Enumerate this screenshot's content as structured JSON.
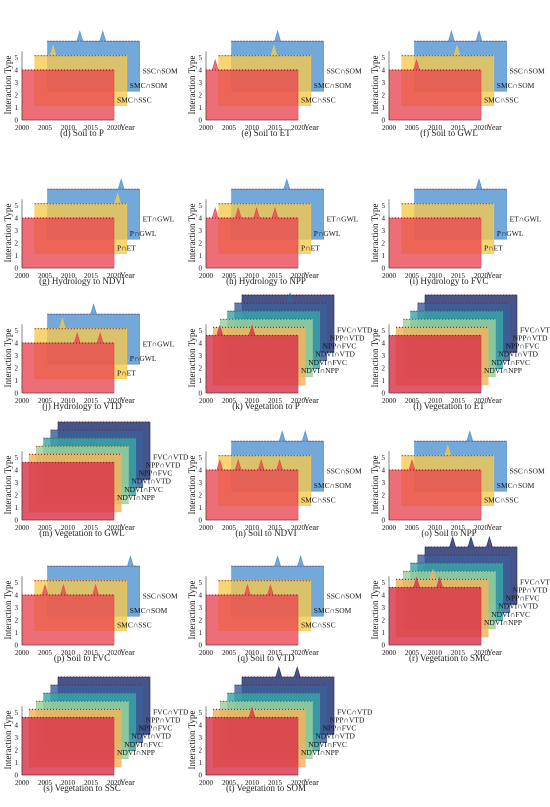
{
  "ylabel": "Interaction Type",
  "year_label": "Year",
  "x_ticks": [
    "2000",
    "2005",
    "2010",
    "2015",
    "2020"
  ],
  "y_ticks": [
    "0",
    "1",
    "2",
    "3",
    "4",
    "5"
  ],
  "colors": {
    "back": "#4a8fd0",
    "mid": "#f6c94c",
    "front": "#e8454f",
    "v6": "#1f2e6e",
    "v5": "#3b5f9b",
    "v4": "#37a6a8",
    "v3": "#9bcf9a",
    "v2": "#f4b25c",
    "v1": "#d8334a"
  },
  "chart_data": [
    {
      "type": "area",
      "caption": "(d) Soil to P",
      "layer_labels": [
        "SMC∩SSC",
        "SMC∩SOM",
        "SSC∩SOM"
      ]
    },
    {
      "type": "area",
      "caption": "(e) Soil to ET",
      "layer_labels": [
        "SMC∩SSC",
        "SMC∩SOM",
        "SSC∩SOM"
      ]
    },
    {
      "type": "area",
      "caption": "(f) Soil to GWL",
      "layer_labels": [
        "SMC∩SSC",
        "SMC∩SOM",
        "SSC∩SOM"
      ]
    },
    {
      "type": "area",
      "caption": "(g) Hydrology to NDVI",
      "layer_labels": [
        "P∩ET",
        "P∩GWL",
        "ET∩GWL"
      ]
    },
    {
      "type": "area",
      "caption": "(h) Hydrology to NPP",
      "layer_labels": [
        "P∩ET",
        "P∩GWL",
        "ET∩GWL"
      ]
    },
    {
      "type": "area",
      "caption": "(i) Hydrology to FVC",
      "layer_labels": [
        "P∩ET",
        "P∩GWL",
        "ET∩GWL"
      ]
    },
    {
      "type": "area",
      "caption": "(j) Hydrology to VTD",
      "layer_labels": [
        "P∩ET",
        "P∩GWL",
        "ET∩GWL"
      ]
    },
    {
      "type": "area",
      "caption": "(k) Vegetation to P",
      "layer_labels": [
        "NDVI∩NPP",
        "NDVI∩FVC",
        "NDVI∩VTD",
        "NPP∩FVC",
        "NPP∩VTD",
        "FVC∩VTD"
      ]
    },
    {
      "type": "area",
      "caption": "(l) Vegetation to ET",
      "layer_labels": [
        "NDVI∩NPP",
        "NDVI∩FVC",
        "NDVI∩VTD",
        "NPP∩FVC",
        "NPP∩VTD",
        "FVC∩VTD"
      ]
    },
    {
      "type": "area",
      "caption": "(m) Vegetation to GWL",
      "layer_labels": [
        "NDVI∩NPP",
        "NDVI∩FVC",
        "NDVI∩VTD",
        "NPP∩FVC",
        "NPP∩VTD",
        "FVC∩VTD"
      ]
    },
    {
      "type": "area",
      "caption": "(n) Soil to NDVI",
      "layer_labels": [
        "SMC∩SSC",
        "SMC∩SOM",
        "SSC∩SOM"
      ]
    },
    {
      "type": "area",
      "caption": "(o) Soil to NPP",
      "layer_labels": [
        "SMC∩SSC",
        "SMC∩SOM",
        "SSC∩SOM"
      ]
    },
    {
      "type": "area",
      "caption": "(p) Soil to FVC",
      "layer_labels": [
        "SMC∩SSC",
        "SMC∩SOM",
        "SSC∩SOM"
      ]
    },
    {
      "type": "area",
      "caption": "(q) Soil to VTD",
      "layer_labels": [
        "SMC∩SSC",
        "SMC∩SOM",
        "SSC∩SOM"
      ]
    },
    {
      "type": "area",
      "caption": "(r) Vegetation to SMC",
      "layer_labels": [
        "NDVI∩NPP",
        "NDVI∩FVC",
        "NDVI∩VTD",
        "NPP∩FVC",
        "NPP∩VTD",
        "FVC∩VTD"
      ]
    },
    {
      "type": "area",
      "caption": "(s) Vegetation to SSC",
      "layer_labels": [
        "NDVI∩NPP",
        "NDVI∩FVC",
        "NDVI∩VTD",
        "NPP∩FVC",
        "NPP∩VTD",
        "FVC∩VTD"
      ]
    },
    {
      "type": "area",
      "caption": "(t) Vegetation to SOM",
      "layer_labels": [
        "NDVI∩NPP",
        "NDVI∩FVC",
        "NDVI∩VTD",
        "NPP∩FVC",
        "NPP∩VTD",
        "FVC∩VTD"
      ]
    }
  ]
}
